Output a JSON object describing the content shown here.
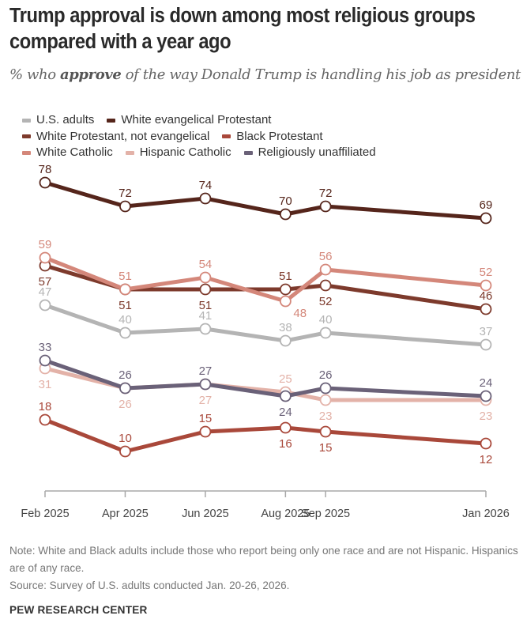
{
  "title": "Trump approval is down among most religious groups compared with a year ago",
  "subtitle": {
    "prefix": "% who ",
    "emphasis": "approve",
    "suffix": " of the way Donald Trump is handling his job as president"
  },
  "note": "Note: White and Black adults include those who report being only one race and are not Hispanic. Hispanics are of any race.",
  "source": "Source: Survey of U.S. adults conducted Jan. 20-26, 2026.",
  "brand": "PEW RESEARCH CENTER",
  "chart_data": {
    "type": "line",
    "title": "Trump approval is down among most religious groups compared with a year ago",
    "subtitle": "% who approve of the way Donald Trump is handling his job as president",
    "xlabel": "",
    "ylabel": "",
    "categories": [
      "Feb 2025",
      "Apr 2025",
      "Jun 2025",
      "Aug 2025",
      "Sep 2025",
      "Jan 2026"
    ],
    "x_months_since_feb_2025": [
      0,
      2,
      4,
      6,
      7,
      11
    ],
    "ylim": [
      0,
      80
    ],
    "grid": false,
    "legend_placement": "top-left",
    "series": [
      {
        "name": "U.S. adults",
        "color": "#b4b4b4",
        "values": [
          47,
          40,
          41,
          38,
          40,
          37
        ],
        "label_pos": [
          "above",
          "above",
          "above",
          "above",
          "above",
          "above"
        ]
      },
      {
        "name": "White evangelical Protestant",
        "color": "#55251b",
        "values": [
          78,
          72,
          74,
          70,
          72,
          69
        ],
        "label_pos": [
          "above",
          "above",
          "above",
          "above",
          "above",
          "above"
        ]
      },
      {
        "name": "White Protestant, not evangelical",
        "color": "#7d3a2c",
        "values": [
          57,
          51,
          51,
          51,
          52,
          46
        ],
        "label_pos": [
          "below",
          "below",
          "below",
          "above",
          "below",
          "above"
        ]
      },
      {
        "name": "Black Protestant",
        "color": "#a9483a",
        "values": [
          18,
          10,
          15,
          16,
          15,
          12
        ],
        "label_pos": [
          "above",
          "above",
          "above",
          "below",
          "below",
          "below"
        ]
      },
      {
        "name": "White Catholic",
        "color": "#d4877a",
        "values": [
          59,
          51,
          54,
          48,
          56,
          52
        ],
        "label_pos": [
          "above",
          "above",
          "above",
          "right",
          "above",
          "above"
        ]
      },
      {
        "name": "Hispanic Catholic",
        "color": "#e3b2a8",
        "values": [
          31,
          26,
          27,
          25,
          23,
          23
        ],
        "label_pos": [
          "below",
          "below",
          "below",
          "above",
          "below",
          "below"
        ]
      },
      {
        "name": "Religiously unaffiliated",
        "color": "#6a6178",
        "values": [
          33,
          26,
          27,
          24,
          26,
          24
        ],
        "label_pos": [
          "above",
          "above",
          "above",
          "below",
          "above",
          "above"
        ]
      }
    ],
    "draw_order": [
      0,
      5,
      6,
      3,
      2,
      4,
      1
    ],
    "legend_rows": [
      [
        0,
        1
      ],
      [
        2,
        3
      ],
      [
        4,
        5,
        6
      ]
    ]
  }
}
